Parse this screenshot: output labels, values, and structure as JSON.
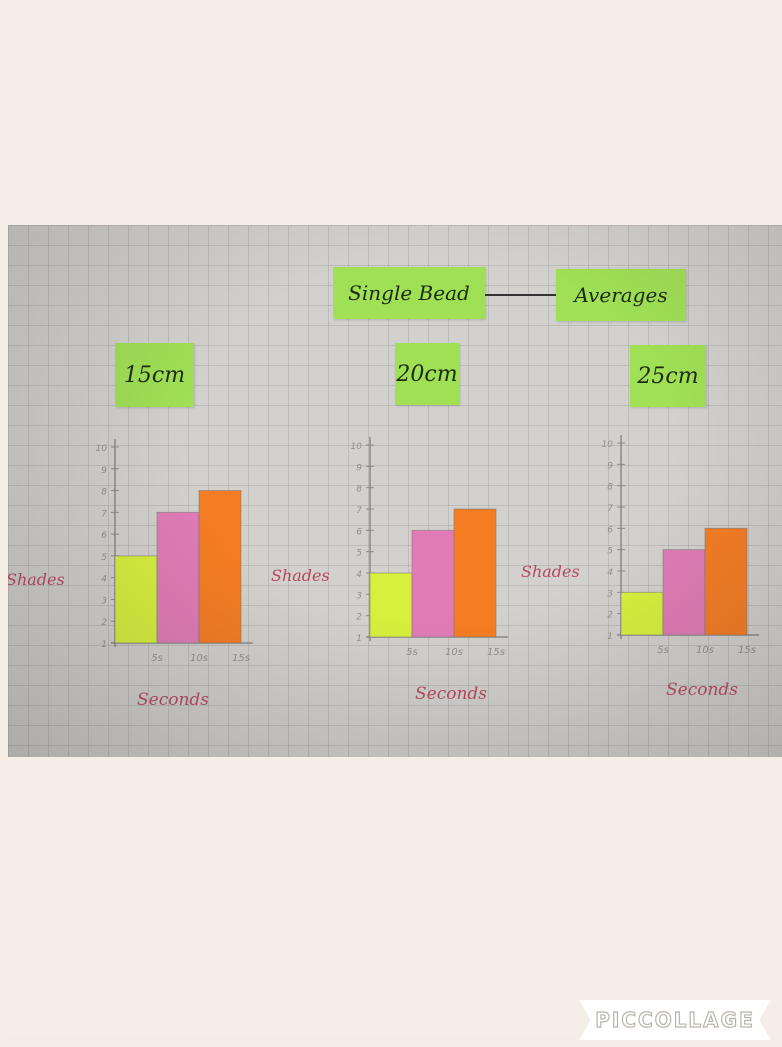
{
  "photo": {
    "title_left": "Single Bead",
    "title_right": "Averages"
  },
  "logo": {
    "text": "PICCOLLAGE"
  },
  "colors": {
    "bar_5s": "#d6f03c",
    "bar_10s": "#e07bb6",
    "bar_15s": "#f57c22",
    "axis_label": "#b9485d",
    "note": "#9fe055"
  },
  "chart_data": [
    {
      "type": "bar",
      "title": "15cm",
      "xlabel": "Seconds",
      "ylabel": "Shades",
      "categories": [
        "5s",
        "10s",
        "15s"
      ],
      "values": [
        5,
        7,
        8
      ],
      "yticks": [
        "1",
        "2",
        "3",
        "4",
        "5",
        "6",
        "7",
        "8",
        "9",
        "10"
      ],
      "ylim": [
        1,
        10
      ],
      "grid": true
    },
    {
      "type": "bar",
      "title": "20cm",
      "xlabel": "Seconds",
      "ylabel": "Shades",
      "categories": [
        "5s",
        "10s",
        "15s"
      ],
      "values": [
        4,
        6,
        7
      ],
      "yticks": [
        "1",
        "2",
        "3",
        "4",
        "5",
        "6",
        "7",
        "8",
        "9",
        "10"
      ],
      "ylim": [
        1,
        10
      ],
      "grid": true
    },
    {
      "type": "bar",
      "title": "25cm",
      "xlabel": "Seconds",
      "ylabel": "Shades",
      "categories": [
        "5s",
        "10s",
        "15s"
      ],
      "values": [
        3,
        5,
        6
      ],
      "yticks": [
        "1",
        "2",
        "3",
        "4",
        "5",
        "6",
        "7",
        "8",
        "9",
        "10"
      ],
      "ylim": [
        1,
        10
      ],
      "grid": true
    }
  ]
}
